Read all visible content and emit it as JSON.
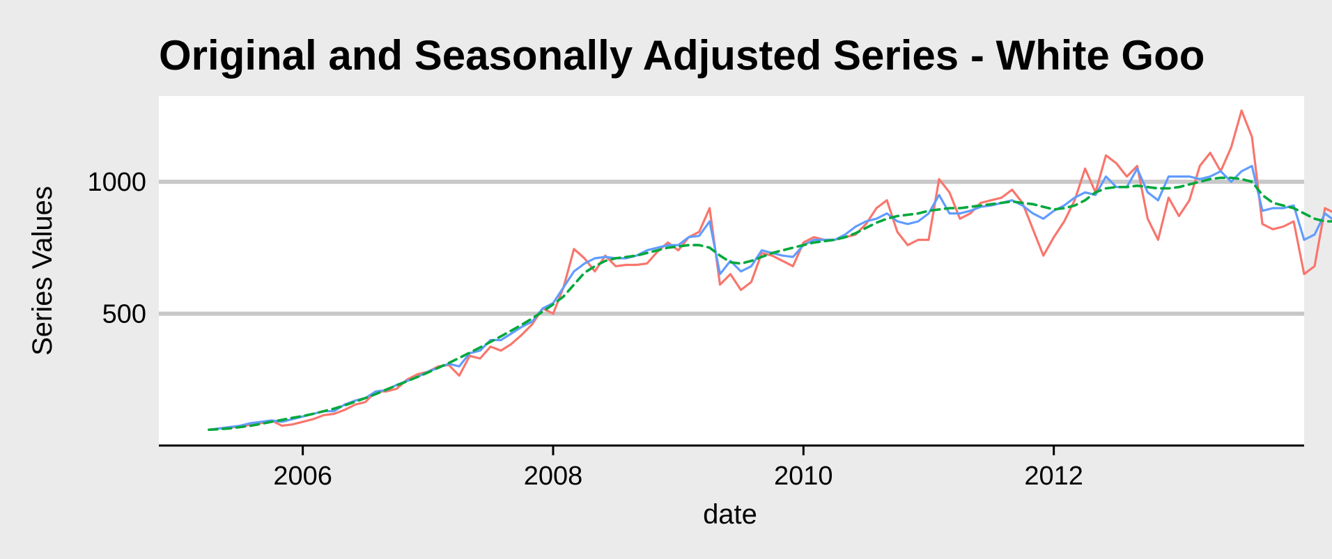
{
  "chart_data": {
    "type": "line",
    "title": "Original and Seasonally Adjusted Series - White Goo",
    "xlabel": "date",
    "ylabel": "Series Values",
    "x_ticks": [
      "2006",
      "2008",
      "2010",
      "2012"
    ],
    "y_ticks": [
      "500",
      "1000"
    ],
    "xlim": [
      2004.85,
      2014.0
    ],
    "ylim": [
      0,
      1325
    ],
    "x_tick_values": [
      2006,
      2008,
      2010,
      2012
    ],
    "y_tick_values": [
      500,
      1000
    ],
    "grid": "horizontal major lines",
    "legend": "none",
    "colors": {
      "background": "#ebebeb",
      "panel": "#ffffff",
      "grid": "#c8c8c8",
      "axis": "#000000",
      "original": "#f8766d",
      "adjusted": "#619cff",
      "trend": "#00a83c"
    },
    "x_start": 2005.25,
    "x_step": 0.0833333,
    "series": [
      {
        "key": "original",
        "style": "solid",
        "values": [
          60,
          65,
          70,
          70,
          80,
          85,
          95,
          75,
          80,
          90,
          100,
          115,
          120,
          135,
          155,
          165,
          205,
          205,
          215,
          250,
          270,
          280,
          300,
          305,
          265,
          340,
          330,
          375,
          360,
          385,
          420,
          460,
          520,
          500,
          600,
          745,
          710,
          660,
          720,
          680,
          685,
          685,
          690,
          735,
          770,
          740,
          790,
          810,
          900,
          610,
          650,
          590,
          620,
          730,
          720,
          700,
          680,
          770,
          790,
          780,
          780,
          790,
          800,
          840,
          900,
          930,
          810,
          760,
          780,
          780,
          1010,
          960,
          860,
          880,
          920,
          930,
          940,
          970,
          920,
          820,
          720,
          790,
          850,
          930,
          1050,
          960,
          1100,
          1070,
          1020,
          1060,
          860,
          780,
          940,
          870,
          930,
          1060,
          1110,
          1040,
          1130,
          1270,
          1170,
          840,
          820,
          830,
          850,
          650,
          680,
          900,
          880
        ]
      },
      {
        "key": "adjusted",
        "style": "solid",
        "values": [
          60,
          65,
          70,
          75,
          85,
          90,
          95,
          90,
          100,
          110,
          120,
          130,
          130,
          155,
          170,
          180,
          205,
          210,
          230,
          245,
          260,
          280,
          295,
          310,
          300,
          350,
          360,
          400,
          400,
          425,
          450,
          470,
          520,
          540,
          600,
          660,
          690,
          710,
          715,
          710,
          710,
          720,
          740,
          750,
          760,
          760,
          790,
          795,
          850,
          650,
          700,
          660,
          680,
          740,
          730,
          720,
          715,
          760,
          780,
          780,
          780,
          800,
          830,
          850,
          860,
          880,
          850,
          840,
          850,
          880,
          950,
          880,
          880,
          890,
          905,
          910,
          920,
          930,
          910,
          880,
          860,
          890,
          910,
          940,
          960,
          950,
          1020,
          980,
          980,
          1050,
          960,
          930,
          1020,
          1020,
          1020,
          1010,
          1020,
          1040,
          1000,
          1040,
          1060,
          890,
          900,
          900,
          910,
          780,
          800,
          880,
          850
        ]
      },
      {
        "key": "trend",
        "style": "dashed",
        "values": [
          60,
          62,
          65,
          70,
          75,
          82,
          90,
          97,
          105,
          112,
          120,
          130,
          140,
          152,
          166,
          180,
          195,
          212,
          228,
          244,
          260,
          277,
          295,
          313,
          332,
          352,
          372,
          393,
          414,
          436,
          458,
          482,
          508,
          535,
          565,
          610,
          655,
          680,
          700,
          710,
          715,
          720,
          730,
          740,
          750,
          755,
          760,
          760,
          750,
          720,
          695,
          690,
          700,
          715,
          730,
          740,
          750,
          760,
          770,
          775,
          780,
          790,
          805,
          825,
          845,
          860,
          870,
          875,
          880,
          890,
          895,
          900,
          900,
          905,
          910,
          915,
          920,
          925,
          920,
          915,
          905,
          895,
          900,
          910,
          930,
          960,
          975,
          980,
          980,
          985,
          980,
          975,
          975,
          980,
          990,
          1000,
          1010,
          1015,
          1015,
          1010,
          1000,
          950,
          920,
          910,
          900,
          880,
          860,
          850,
          850
        ]
      }
    ]
  }
}
